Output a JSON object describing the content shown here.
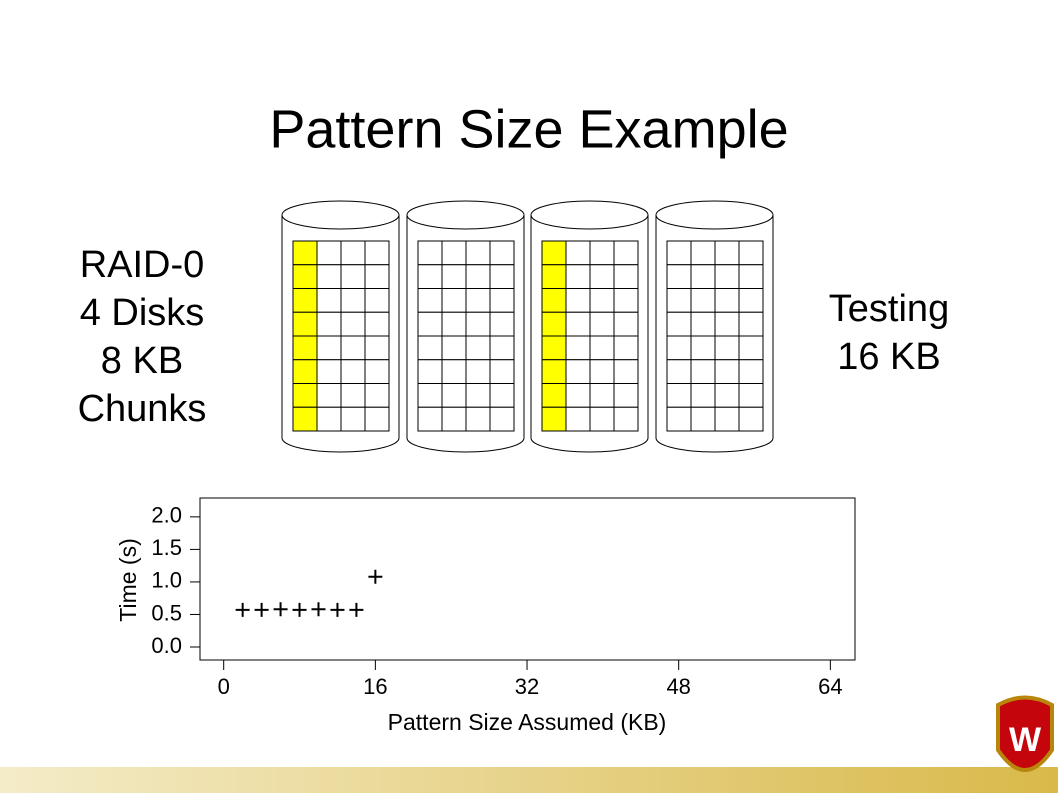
{
  "title": "Pattern Size Example",
  "left_text": [
    "RAID-0",
    "4 Disks",
    "8 KB",
    "Chunks"
  ],
  "right_text": [
    "Testing",
    "16 KB"
  ],
  "logo_text": "W",
  "chart_data": {
    "type": "scatter",
    "x_label": "Pattern Size Assumed (KB)",
    "y_label": "Time (s)",
    "x": [
      2,
      4,
      6,
      8,
      10,
      12,
      14,
      16
    ],
    "values": [
      0.57,
      0.57,
      0.58,
      0.57,
      0.58,
      0.57,
      0.57,
      1.08
    ],
    "color": "#000000",
    "xlim": [
      -2.5,
      66.6
    ],
    "xticks": [
      0,
      16,
      32,
      48,
      64
    ],
    "ylim": [
      -0.2,
      2.29
    ],
    "yticks": [
      {
        "value": 0,
        "label": "0.0"
      },
      {
        "value": 0.5,
        "label": "0.5"
      },
      {
        "value": 1,
        "label": "1.0"
      },
      {
        "value": 1.5,
        "label": "1.5"
      },
      {
        "value": 2,
        "label": "2.0"
      }
    ]
  }
}
